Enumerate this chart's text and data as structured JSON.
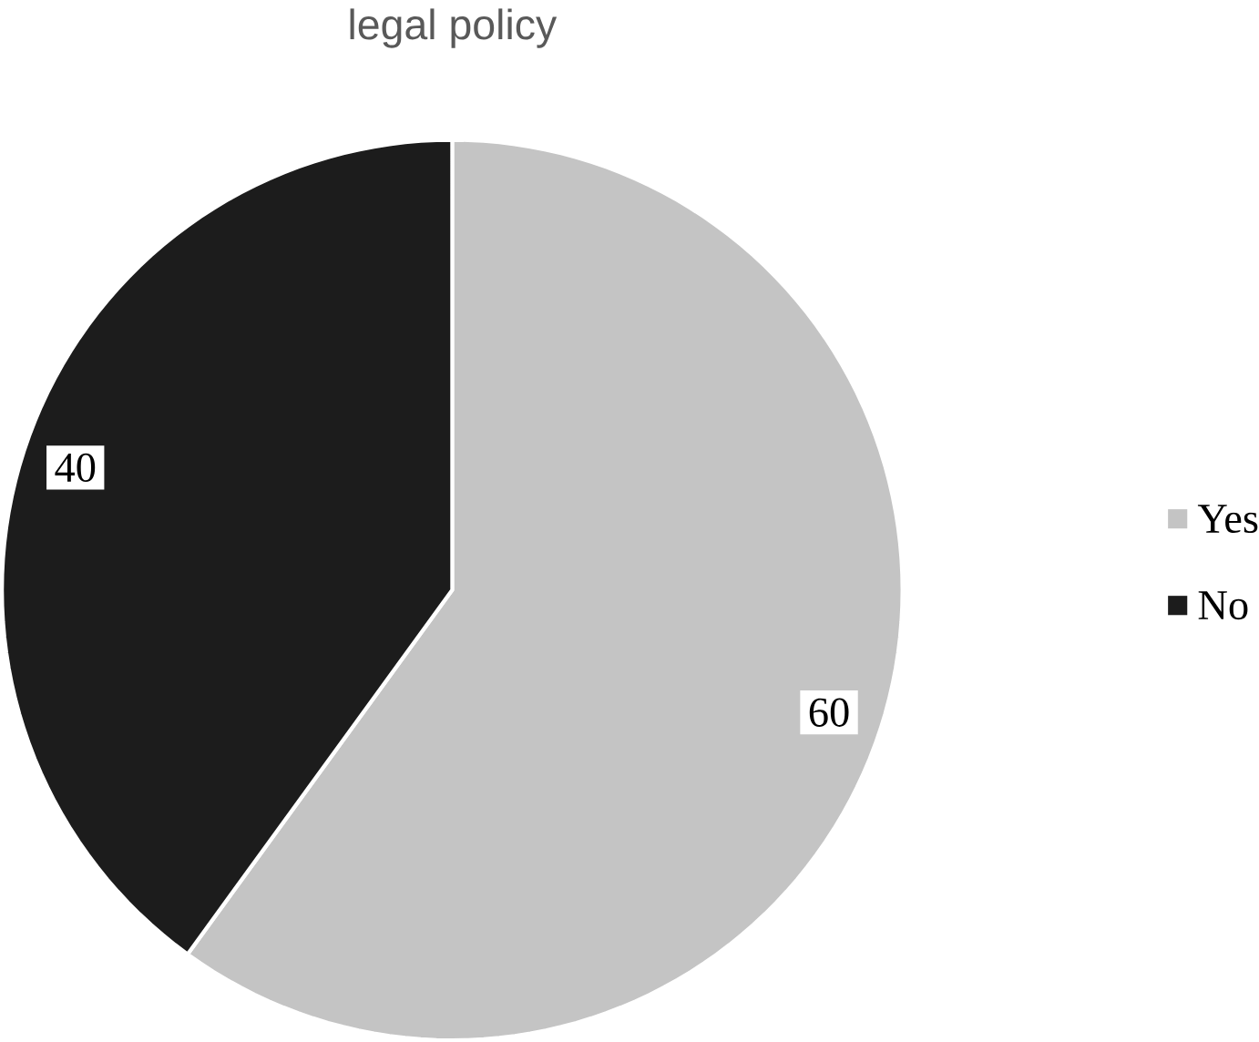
{
  "chart_data": {
    "type": "pie",
    "title": "legal policy",
    "categories": [
      "Yes",
      "No"
    ],
    "values": [
      60,
      40
    ],
    "colors": [
      "#c4c4c4",
      "#1c1c1c"
    ],
    "data_labels": true,
    "legend": "right"
  }
}
